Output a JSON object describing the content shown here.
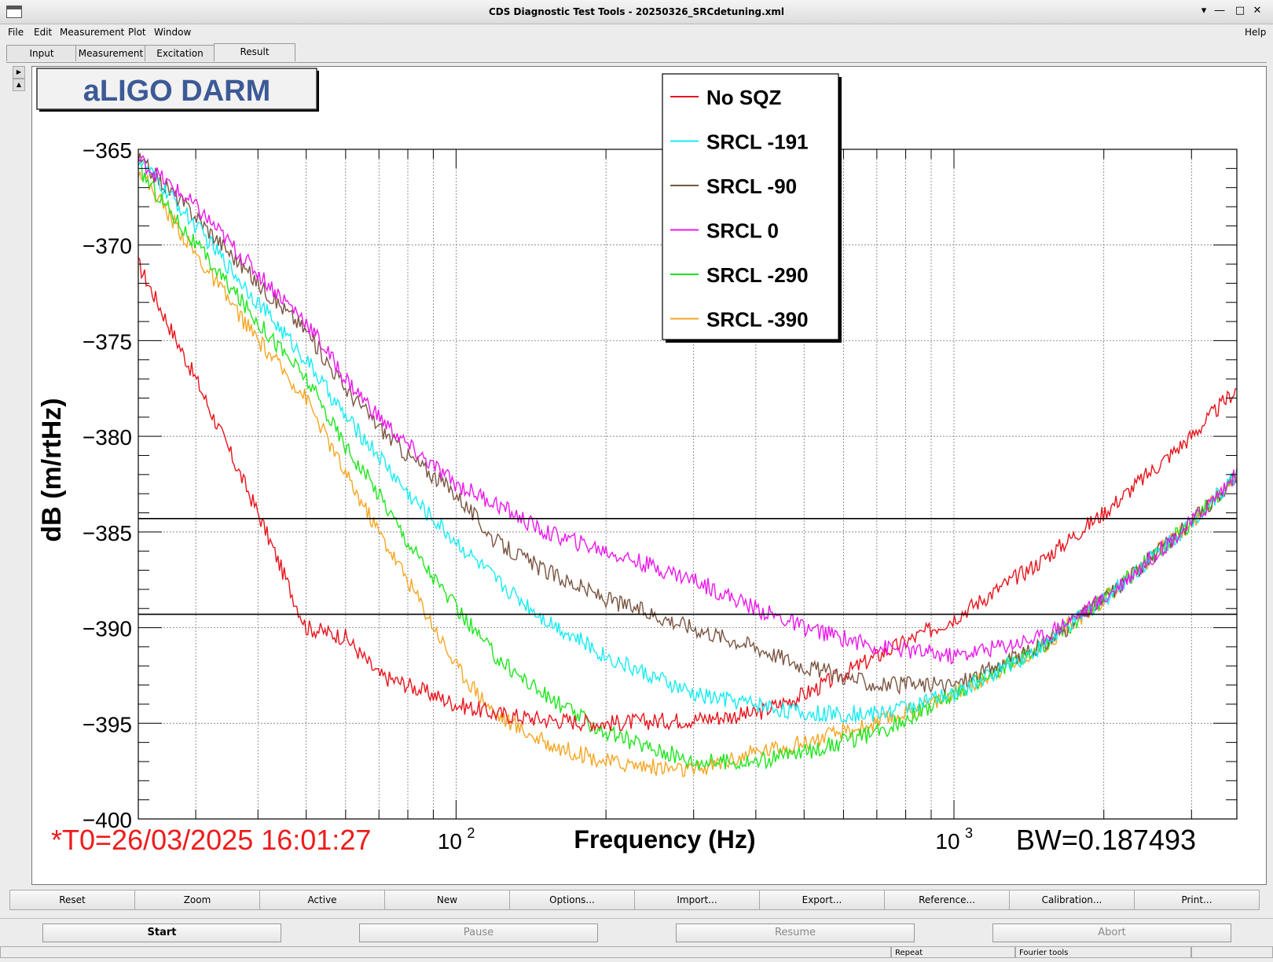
{
  "window": {
    "title": "CDS Diagnostic Test Tools - 20250326_SRCdetuning.xml",
    "controls": [
      "minimize-icon",
      "maximize-icon",
      "restore-icon",
      "close-icon"
    ]
  },
  "menubar": {
    "items": [
      "File",
      "Edit",
      "Measurement",
      "Plot",
      "Window"
    ],
    "help": "Help"
  },
  "tabs": [
    {
      "label": "Input"
    },
    {
      "label": "Measurement"
    },
    {
      "label": "Excitation"
    },
    {
      "label": "Result",
      "active": true
    }
  ],
  "plot": {
    "title": "aLIGO DARM",
    "timestamp": "*T0=26/03/2025 16:01:27",
    "bandwidth": "BW=0.187493",
    "xlabel": "Frequency (Hz)",
    "ylabel": "dB (m/rtHz)",
    "x_tick_labels": [
      "10",
      "2",
      "10",
      "3"
    ],
    "y_tick_labels": [
      "−365",
      "−370",
      "−375",
      "−380",
      "−385",
      "−390",
      "−395",
      "−400"
    ],
    "legend": [
      "No SQZ",
      "SRCL -191",
      "SRCL -90",
      "SRCL 0",
      "SRCL -290",
      "SRCL -390"
    ],
    "colors": {
      "No SQZ": "#e8141c",
      "SRCL -191": "#16ecf2",
      "SRCL -90": "#7a5542",
      "SRCL 0": "#ec18ec",
      "SRCL -290": "#1ee61e",
      "SRCL -390": "#f5a623"
    }
  },
  "chart_data": {
    "type": "line",
    "title": "aLIGO DARM",
    "xlabel": "Frequency (Hz)",
    "ylabel": "dB (m/rtHz)",
    "xscale": "log",
    "xlim": [
      23,
      3700
    ],
    "ylim": [
      -400,
      -365
    ],
    "grid": true,
    "legend_position": "top-center",
    "reference_lines_y": [
      -384.3,
      -389.3
    ],
    "x": [
      23,
      30,
      40,
      50,
      60,
      70,
      80,
      100,
      120,
      150,
      200,
      300,
      400,
      500,
      700,
      1000,
      1500,
      2000,
      3000,
      3700
    ],
    "series": [
      {
        "name": "No SQZ",
        "color": "#e8141c",
        "values": [
          -371,
          -377,
          -384,
          -390,
          -390.5,
          -392.5,
          -393,
          -394,
          -394.5,
          -394.8,
          -395,
          -394.8,
          -394.5,
          -393.5,
          -391.5,
          -389.5,
          -386.5,
          -384,
          -380,
          -377.5
        ]
      },
      {
        "name": "SRCL -191",
        "color": "#16ecf2",
        "values": [
          -365.5,
          -369,
          -373,
          -376,
          -379,
          -381,
          -383,
          -385.5,
          -387.5,
          -389.5,
          -391.5,
          -393.5,
          -394,
          -394.5,
          -394.5,
          -393.5,
          -391,
          -388.5,
          -384.5,
          -382
        ]
      },
      {
        "name": "SRCL -90",
        "color": "#7a5542",
        "values": [
          -365.5,
          -368.5,
          -372,
          -374.5,
          -377.5,
          -379.5,
          -381,
          -383,
          -385.5,
          -387,
          -388.5,
          -390,
          -391,
          -392,
          -393,
          -393,
          -391,
          -388.5,
          -384.5,
          -382
        ]
      },
      {
        "name": "SRCL 0",
        "color": "#ec18ec",
        "values": [
          -365.5,
          -368,
          -371.5,
          -374,
          -377,
          -379,
          -380.5,
          -382.5,
          -383.5,
          -385,
          -386,
          -387.5,
          -389,
          -390,
          -391,
          -391.5,
          -390.5,
          -388.5,
          -384.5,
          -382
        ]
      },
      {
        "name": "SRCL -290",
        "color": "#1ee61e",
        "values": [
          -366,
          -370,
          -374,
          -377,
          -380.5,
          -383,
          -385.5,
          -389,
          -391.5,
          -393.5,
          -395.5,
          -397,
          -397,
          -396.5,
          -395.5,
          -393.5,
          -391,
          -388.5,
          -384.5,
          -382
        ]
      },
      {
        "name": "SRCL -390",
        "color": "#f5a623",
        "values": [
          -366,
          -370.5,
          -375,
          -378,
          -382,
          -385,
          -387.5,
          -392,
          -394.5,
          -396,
          -397,
          -397.5,
          -396.5,
          -396,
          -395,
          -393.5,
          -391,
          -388.5,
          -384.5,
          -382
        ]
      }
    ]
  },
  "toolbar": [
    "Reset",
    "Zoom",
    "Active",
    "New",
    "Options...",
    "Import...",
    "Export...",
    "Reference...",
    "Calibration...",
    "Print..."
  ],
  "controls": [
    {
      "label": "Start",
      "enabled": true
    },
    {
      "label": "Pause",
      "enabled": false
    },
    {
      "label": "Resume",
      "enabled": false
    },
    {
      "label": "Abort",
      "enabled": false
    }
  ],
  "status": {
    "repeat": "Repeat",
    "fourier": "Fourier tools"
  }
}
